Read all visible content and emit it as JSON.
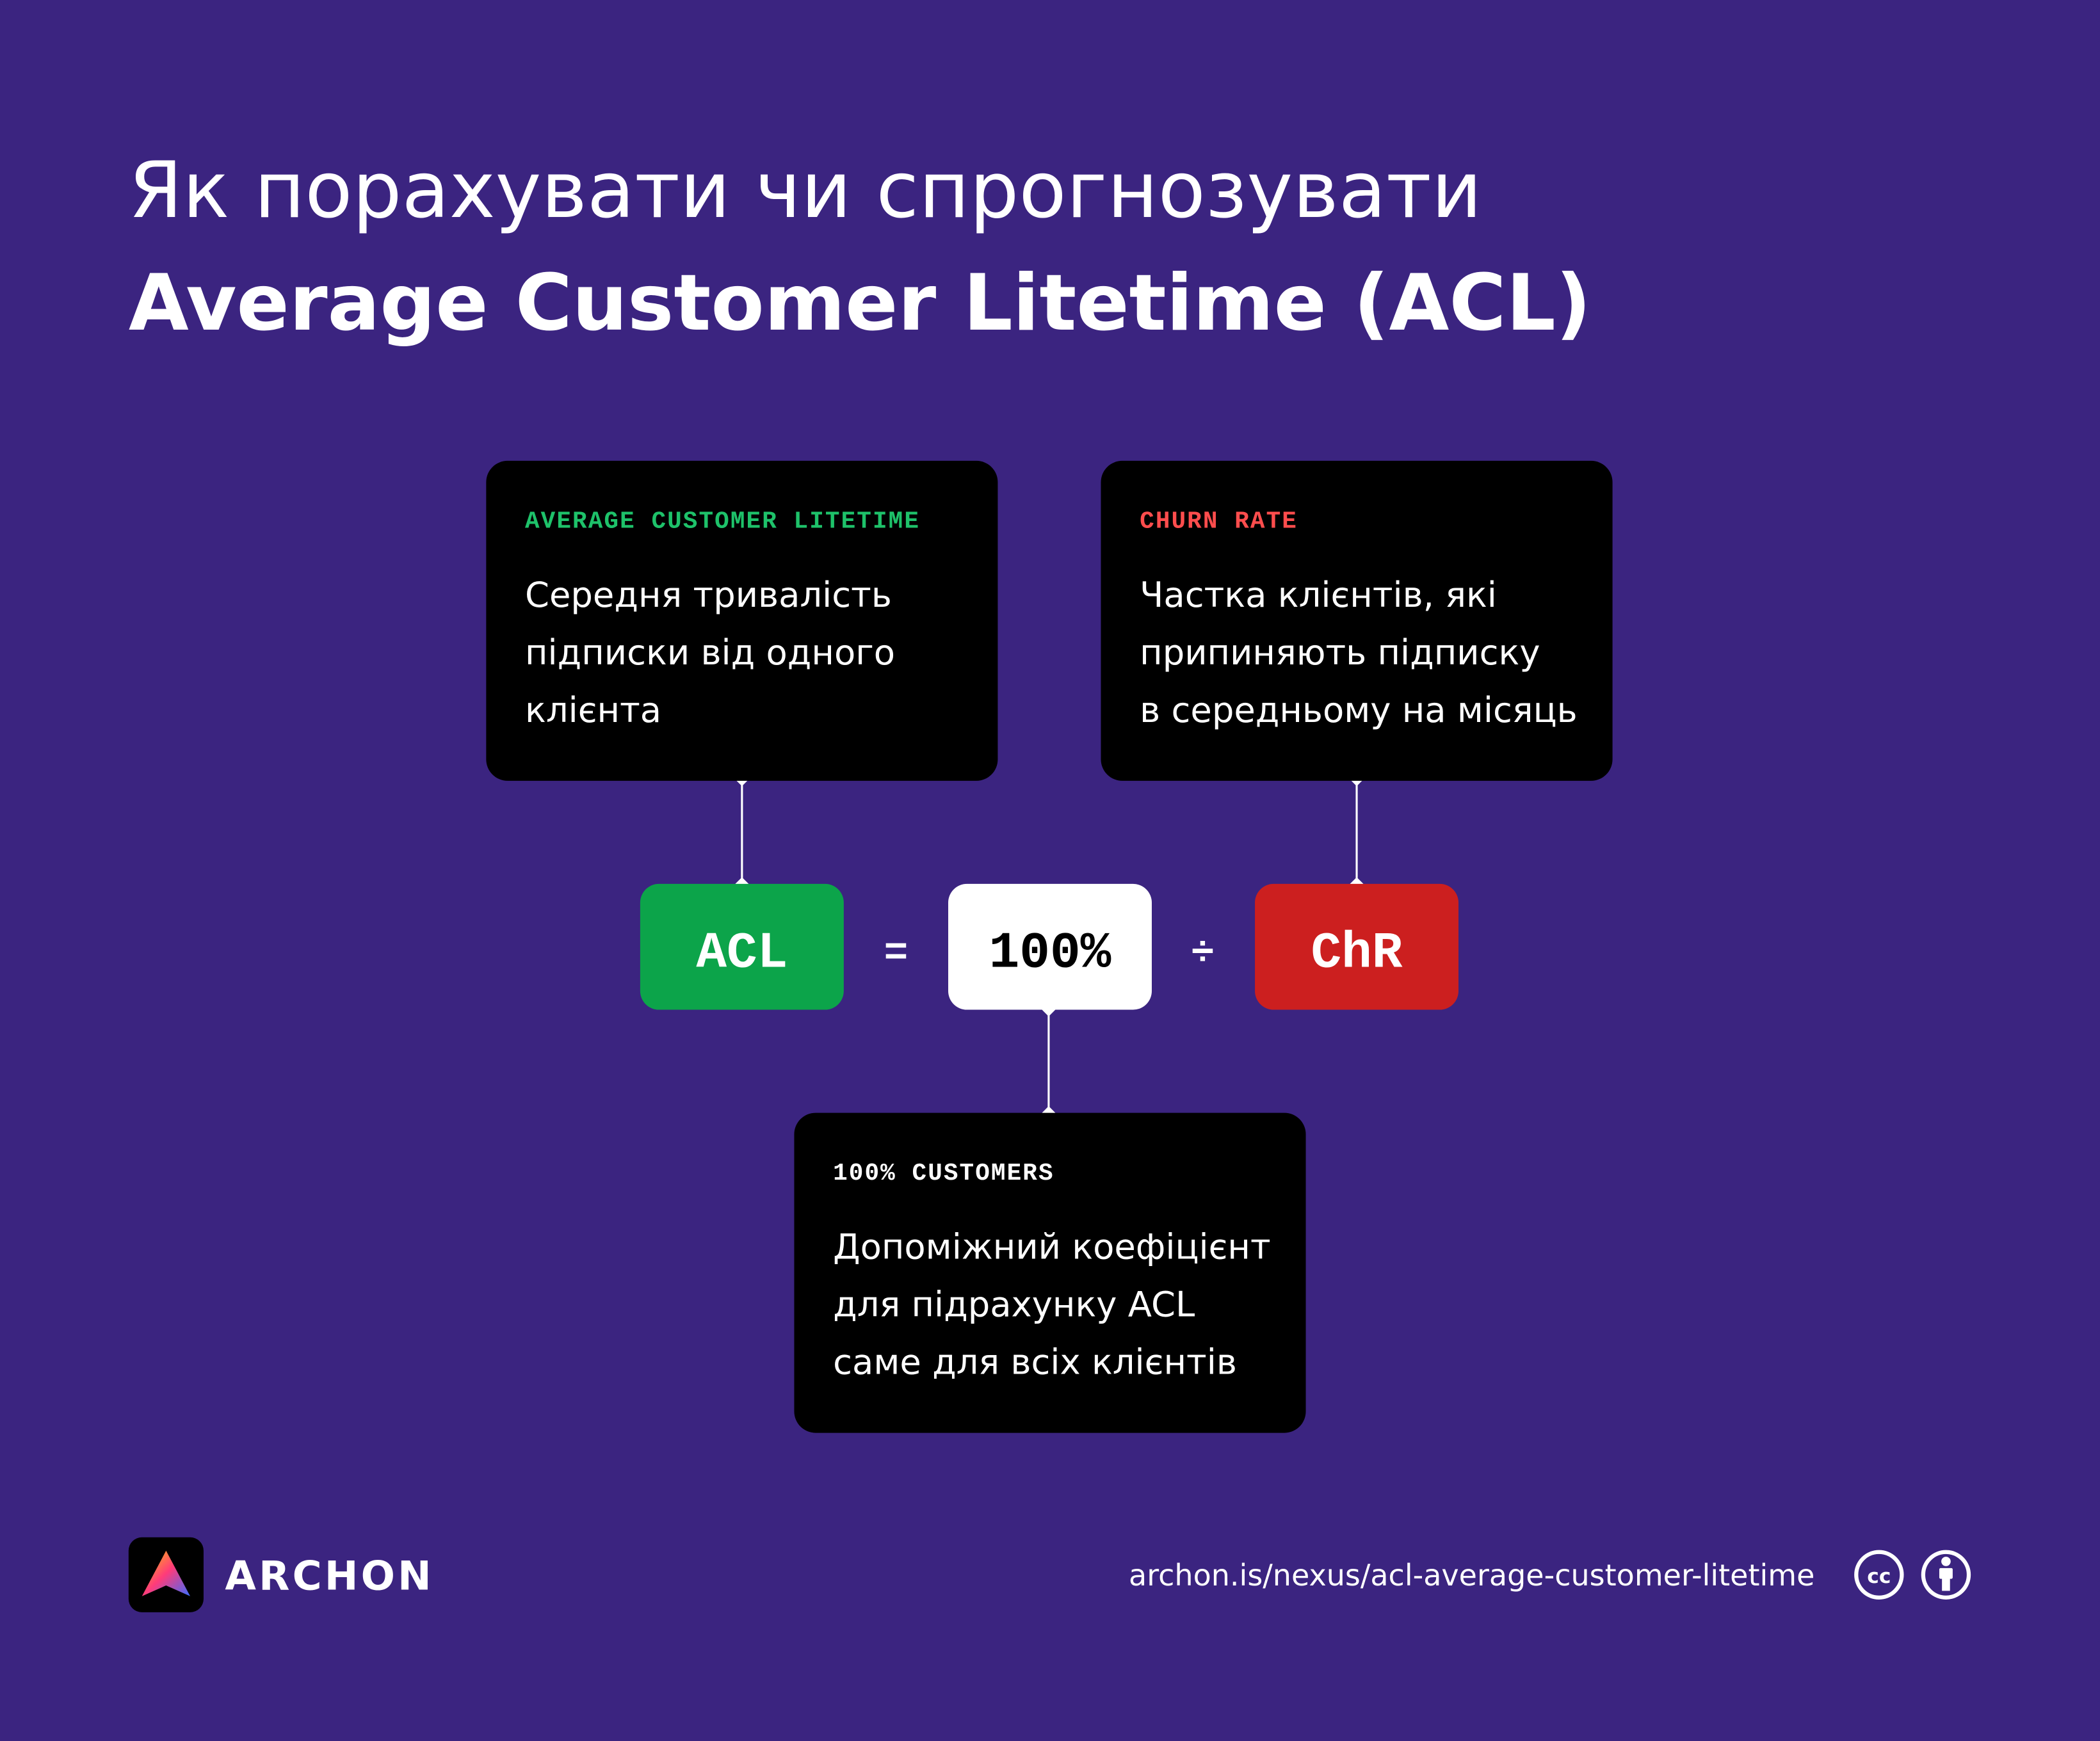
{
  "title": {
    "line1": "Як порахувати чи спрогнозувати",
    "line2": "Average Customer Litetime (ACL)"
  },
  "cards": [
    {
      "label": "AVERAGE CUSTOMER LITETIME",
      "lines": [
        "Середня тривалість",
        "підписки від одного",
        "клієнта"
      ]
    },
    {
      "label": "CHURN RATE",
      "lines": [
        "Частка клієнтів, які",
        "припиняють підписку",
        "в середньому на місяць"
      ]
    },
    {
      "label": "100% CUSTOMERS",
      "lines": [
        "Допоміжний коефіцієнт",
        "для підрахунку ACL",
        "саме для всіх клієнтів"
      ]
    }
  ],
  "formula": {
    "left": "ACL",
    "equals": "=",
    "middle": "100%",
    "divide": "÷",
    "right": "ChR"
  },
  "footer": {
    "brand": "ARCHON",
    "url": "archon.is/nexus/acl-average-customer-litetime",
    "cc": "cc"
  }
}
